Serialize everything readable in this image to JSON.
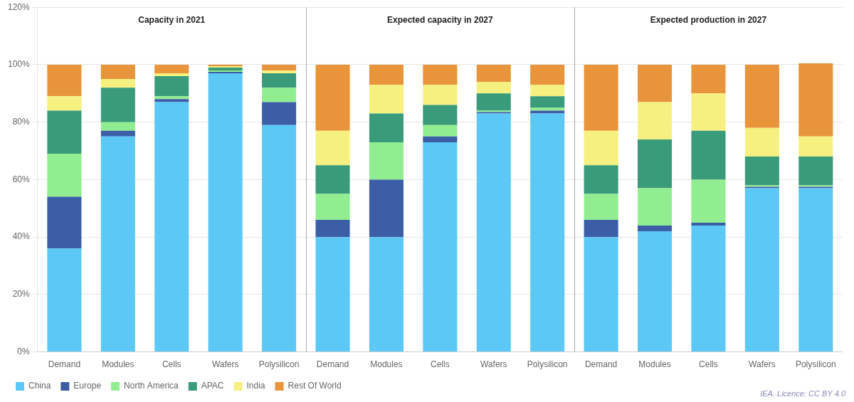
{
  "chart_data": {
    "type": "bar",
    "stacked": true,
    "groups": [
      {
        "label": "Capacity in 2021",
        "categories": [
          "Demand",
          "Modules",
          "Cells",
          "Wafers",
          "Polysilicon"
        ]
      },
      {
        "label": "Expected capacity in 2027",
        "categories": [
          "Demand",
          "Modules",
          "Cells",
          "Wafers",
          "Polysilicon"
        ]
      },
      {
        "label": "Expected production in 2027",
        "categories": [
          "Demand",
          "Modules",
          "Cells",
          "Wafers",
          "Polysilicon"
        ]
      }
    ],
    "series": [
      {
        "name": "China",
        "color": "#5BC8F5",
        "values": [
          0.36,
          0.75,
          0.87,
          0.97,
          0.79,
          0.4,
          0.4,
          0.73,
          0.83,
          0.83,
          0.4,
          0.42,
          0.44,
          0.57,
          0.57
        ]
      },
      {
        "name": "Europe",
        "color": "#3B5EA6",
        "values": [
          0.18,
          0.02,
          0.01,
          0.005,
          0.08,
          0.06,
          0.2,
          0.02,
          0.005,
          0.01,
          0.06,
          0.02,
          0.01,
          0.005,
          0.005
        ]
      },
      {
        "name": "North America",
        "color": "#90EE90",
        "values": [
          0.15,
          0.03,
          0.01,
          0.005,
          0.05,
          0.09,
          0.13,
          0.04,
          0.005,
          0.01,
          0.09,
          0.13,
          0.15,
          0.005,
          0.005
        ]
      },
      {
        "name": "APAC",
        "color": "#3A9B7A",
        "values": [
          0.15,
          0.12,
          0.07,
          0.01,
          0.05,
          0.1,
          0.1,
          0.07,
          0.06,
          0.04,
          0.1,
          0.17,
          0.17,
          0.1,
          0.1
        ]
      },
      {
        "name": "India",
        "color": "#F5F080",
        "values": [
          0.05,
          0.03,
          0.01,
          0.005,
          0.01,
          0.12,
          0.1,
          0.07,
          0.04,
          0.04,
          0.12,
          0.13,
          0.13,
          0.1,
          0.07
        ]
      },
      {
        "name": "Rest Of World",
        "color": "#E8943A",
        "values": [
          0.11,
          0.05,
          0.03,
          0.005,
          0.02,
          0.23,
          0.07,
          0.07,
          0.06,
          0.07,
          0.23,
          0.13,
          0.1,
          0.22,
          0.255
        ]
      }
    ],
    "ylim": [
      0,
      1.2
    ],
    "yticks": [
      {
        "value": 0.0,
        "label": "0%"
      },
      {
        "value": 0.2,
        "label": "20%"
      },
      {
        "value": 0.4,
        "label": "40%"
      },
      {
        "value": 0.6,
        "label": "60%"
      },
      {
        "value": 0.8,
        "label": "80%"
      },
      {
        "value": 1.0,
        "label": "100%"
      },
      {
        "value": 1.2,
        "label": "120%"
      }
    ],
    "grid": true,
    "legend": "bottom",
    "annotations": [
      "IEA. Licence: CC BY 4.0"
    ]
  }
}
